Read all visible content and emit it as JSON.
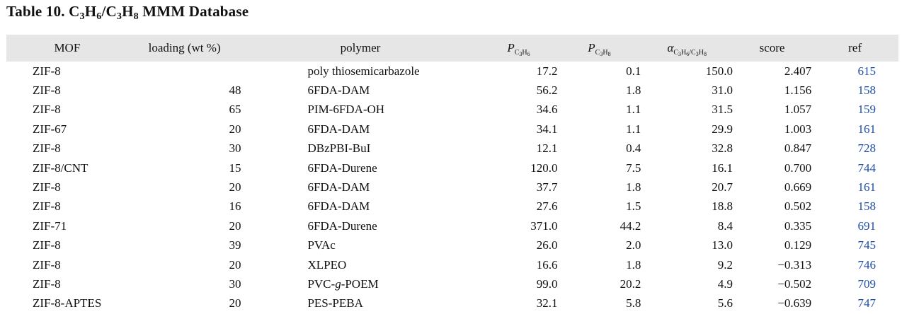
{
  "title": {
    "prefix": "Table 10. C",
    "s1": "3",
    "m1": "H",
    "s2": "6",
    "m2": "/C",
    "s3": "3",
    "m3": "H",
    "s4": "8",
    "suffix": " MMM Database"
  },
  "headers": {
    "mof": "MOF",
    "loading": "loading (wt %)",
    "polymer": "polymer",
    "p_c3h6": {
      "sym": "P",
      "sub_a": "C",
      "sub_b": "3",
      "sub_c": "H",
      "sub_d": "6"
    },
    "p_c3h8": {
      "sym": "P",
      "sub_a": "C",
      "sub_b": "3",
      "sub_c": "H",
      "sub_d": "8"
    },
    "alpha": {
      "sym": "α",
      "sub_a": "C",
      "sub_b": "3",
      "sub_c": "H",
      "sub_d": "6",
      "sub_e": "/C",
      "sub_f": "3",
      "sub_g": "H",
      "sub_h": "8"
    },
    "score": "score",
    "ref": "ref"
  },
  "rows": [
    {
      "mof": "ZIF-8",
      "loading": "",
      "polymer": "poly thiosemicarbazole",
      "p1": "17.2",
      "p2": "0.1",
      "alpha": "150.0",
      "score": "2.407",
      "ref": "615"
    },
    {
      "mof": "ZIF-8",
      "loading": "48",
      "polymer": "6FDA-DAM",
      "p1": "56.2",
      "p2": "1.8",
      "alpha": "31.0",
      "score": "1.156",
      "ref": "158"
    },
    {
      "mof": "ZIF-8",
      "loading": "65",
      "polymer": "PIM-6FDA-OH",
      "p1": "34.6",
      "p2": "1.1",
      "alpha": "31.5",
      "score": "1.057",
      "ref": "159"
    },
    {
      "mof": "ZIF-67",
      "loading": "20",
      "polymer": "6FDA-DAM",
      "p1": "34.1",
      "p2": "1.1",
      "alpha": "29.9",
      "score": "1.003",
      "ref": "161"
    },
    {
      "mof": "ZIF-8",
      "loading": "30",
      "polymer": "DBzPBI-BuI",
      "p1": "12.1",
      "p2": "0.4",
      "alpha": "32.8",
      "score": "0.847",
      "ref": "728"
    },
    {
      "mof": "ZIF-8/CNT",
      "loading": "15",
      "polymer": "6FDA-Durene",
      "p1": "120.0",
      "p2": "7.5",
      "alpha": "16.1",
      "score": "0.700",
      "ref": "744"
    },
    {
      "mof": "ZIF-8",
      "loading": "20",
      "polymer": "6FDA-DAM",
      "p1": "37.7",
      "p2": "1.8",
      "alpha": "20.7",
      "score": "0.669",
      "ref": "161"
    },
    {
      "mof": "ZIF-8",
      "loading": "16",
      "polymer": "6FDA-DAM",
      "p1": "27.6",
      "p2": "1.5",
      "alpha": "18.8",
      "score": "0.502",
      "ref": "158"
    },
    {
      "mof": "ZIF-71",
      "loading": "20",
      "polymer": "6FDA-Durene",
      "p1": "371.0",
      "p2": "44.2",
      "alpha": "8.4",
      "score": "0.335",
      "ref": "691"
    },
    {
      "mof": "ZIF-8",
      "loading": "39",
      "polymer": "PVAc",
      "p1": "26.0",
      "p2": "2.0",
      "alpha": "13.0",
      "score": "0.129",
      "ref": "745"
    },
    {
      "mof": "ZIF-8",
      "loading": "20",
      "polymer": "XLPEO",
      "p1": "16.6",
      "p2": "1.8",
      "alpha": "9.2",
      "score": "−0.313",
      "ref": "746"
    },
    {
      "mof": "ZIF-8",
      "loading": "30",
      "polymer": "PVC-g-POEM",
      "p1": "99.0",
      "p2": "20.2",
      "alpha": "4.9",
      "score": "−0.502",
      "ref": "709"
    },
    {
      "mof": "ZIF-8-APTES",
      "loading": "20",
      "polymer": "PES-PEBA",
      "p1": "32.1",
      "p2": "5.8",
      "alpha": "5.6",
      "score": "−0.639",
      "ref": "747"
    }
  ],
  "colors": {
    "header_bg": "#e6e6e6",
    "ref_link": "#1f4fa8"
  }
}
